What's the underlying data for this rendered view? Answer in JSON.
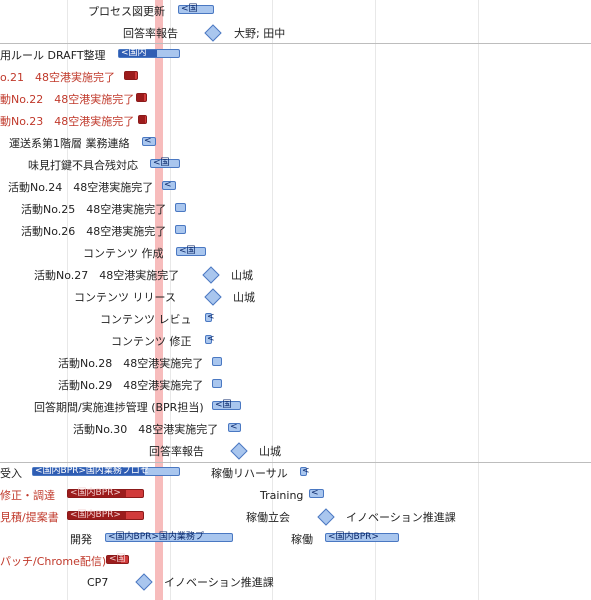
{
  "colors": {
    "bar_fill": "#a9c6ee",
    "bar_border": "#4a78c2",
    "critical_fill": "#d13b3b",
    "today_line": "#f6b5b5",
    "red_text": "#c0392b"
  },
  "rows": {
    "r1": {
      "label": "プロセス図更新",
      "bar": "<国"
    },
    "r2": {
      "label": "回答率報告",
      "resource": "大野; 田中"
    },
    "r3": {
      "label": "用ルール DRAFT整理",
      "bar": "<国内"
    },
    "r4": {
      "label": "o.21　48空港実施完了"
    },
    "r5": {
      "label": "動No.22　48空港実施完了"
    },
    "r6": {
      "label": "動No.23　48空港実施完了"
    },
    "r7": {
      "label": "運送系第1階層 業務連絡",
      "bar": "<"
    },
    "r8": {
      "label": "味見打鍵不具合残対応",
      "bar": "<国"
    },
    "r9": {
      "label": "活動No.24　48空港実施完了",
      "bar": "<"
    },
    "r10": {
      "label": "活動No.25　48空港実施完了"
    },
    "r11": {
      "label": "活動No.26　48空港実施完了"
    },
    "r12": {
      "label": "コンテンツ 作成",
      "bar": "<国"
    },
    "r13": {
      "label": "活動No.27　48空港実施完了",
      "resource": "山城"
    },
    "r14": {
      "label": "コンテンツ リリース",
      "resource": "山城"
    },
    "r15": {
      "label": "コンテンツ レビュ",
      "bar": "<"
    },
    "r16": {
      "label": "コンテンツ 修正",
      "bar": "<"
    },
    "r17": {
      "label": "活動No.28　48空港実施完了"
    },
    "r18": {
      "label": "活動No.29　48空港実施完了"
    },
    "r19": {
      "label": "回答期間/実施進捗管理 (BPR担当)",
      "bar": "<国"
    },
    "r20": {
      "label": "活動No.30　48空港実施完了",
      "bar": "<"
    },
    "r21": {
      "label": "回答率報告",
      "resource": "山城"
    },
    "r22": {
      "label": "受入",
      "bar": "<国内BPR>国内業務プロセ",
      "label2": "稼働リハーサル",
      "bar2": "<"
    },
    "r23": {
      "label": "修正・調達",
      "bar": "<国内BPR>",
      "label2": "Training",
      "bar2": "<"
    },
    "r24": {
      "label": "見積/提案書",
      "bar": "<国内BPR>",
      "label2": "稼働立会",
      "resource": "イノベーション推進課"
    },
    "r25": {
      "label": "開発",
      "bar": "<国内BPR>国内業務プ",
      "label2": "稼働",
      "bar2": "<国内BPR>"
    },
    "r26": {
      "label": "パッチ/Chrome配信)",
      "bar": "<国"
    },
    "r27": {
      "label": "CP7",
      "resource": "イノベーション推進課"
    }
  }
}
